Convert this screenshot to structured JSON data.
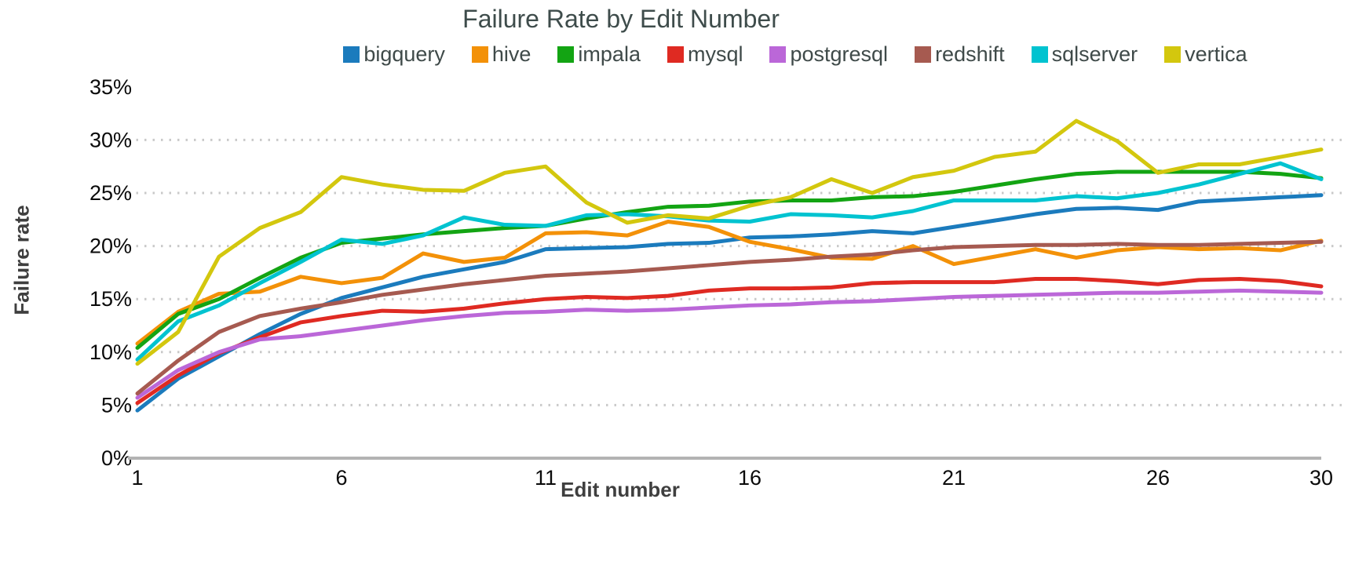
{
  "chart_data": {
    "type": "line",
    "title": "Failure Rate by Edit Number",
    "xlabel": "Edit number",
    "ylabel": "Failure rate",
    "xlim": [
      1,
      30
    ],
    "ylim": [
      0,
      35
    ],
    "grid": "horizontal dotted",
    "legend_position": "top-center",
    "axis_color": "#b3b3b3",
    "grid_color": "#c9c9c9",
    "xticks": [
      1,
      6,
      11,
      16,
      21,
      26,
      30
    ],
    "yticks": [
      "0%",
      "5%",
      "10%",
      "15%",
      "20%",
      "25%",
      "30%",
      "35%"
    ],
    "x": [
      1,
      2,
      3,
      4,
      5,
      6,
      7,
      8,
      9,
      10,
      11,
      12,
      13,
      14,
      15,
      16,
      17,
      18,
      19,
      20,
      21,
      22,
      23,
      24,
      25,
      26,
      27,
      28,
      29,
      30
    ],
    "series": [
      {
        "name": "bigquery",
        "color": "#1b7bbd",
        "values": [
          4.5,
          7.5,
          9.6,
          11.7,
          13.6,
          15.1,
          16.1,
          17.1,
          17.8,
          18.5,
          19.7,
          19.8,
          19.9,
          20.2,
          20.3,
          20.8,
          20.9,
          21.1,
          21.4,
          21.2,
          21.8,
          22.4,
          23.0,
          23.5,
          23.6,
          23.4,
          24.2,
          24.4,
          24.6,
          24.8
        ]
      },
      {
        "name": "hive",
        "color": "#f39108",
        "values": [
          10.8,
          13.8,
          15.5,
          15.7,
          17.1,
          16.5,
          17.0,
          19.3,
          18.5,
          18.9,
          21.2,
          21.3,
          21.0,
          22.3,
          21.8,
          20.4,
          19.7,
          18.9,
          18.8,
          20.0,
          18.3,
          19.0,
          19.7,
          18.9,
          19.6,
          19.9,
          19.7,
          19.8,
          19.6,
          20.5
        ]
      },
      {
        "name": "impala",
        "color": "#13a413",
        "values": [
          10.4,
          13.6,
          15.0,
          17.0,
          18.9,
          20.3,
          20.7,
          21.1,
          21.4,
          21.7,
          21.9,
          22.6,
          23.2,
          23.7,
          23.8,
          24.2,
          24.3,
          24.3,
          24.6,
          24.7,
          25.1,
          25.7,
          26.3,
          26.8,
          27.0,
          27.0,
          27.0,
          27.0,
          26.8,
          26.4
        ]
      },
      {
        "name": "mysql",
        "color": "#df2a22",
        "values": [
          5.2,
          7.8,
          9.9,
          11.4,
          12.8,
          13.4,
          13.9,
          13.8,
          14.1,
          14.6,
          15.0,
          15.2,
          15.1,
          15.3,
          15.8,
          16.0,
          16.0,
          16.1,
          16.5,
          16.6,
          16.6,
          16.6,
          16.9,
          16.9,
          16.7,
          16.4,
          16.8,
          16.9,
          16.7,
          16.2
        ]
      },
      {
        "name": "postgresql",
        "color": "#bb67d8",
        "values": [
          5.7,
          8.3,
          10.0,
          11.2,
          11.5,
          12.0,
          12.5,
          13.0,
          13.4,
          13.7,
          13.8,
          14.0,
          13.9,
          14.0,
          14.2,
          14.4,
          14.5,
          14.7,
          14.8,
          15.0,
          15.2,
          15.3,
          15.4,
          15.5,
          15.6,
          15.6,
          15.7,
          15.8,
          15.7,
          15.6
        ]
      },
      {
        "name": "redshift",
        "color": "#a65a50",
        "values": [
          6.1,
          9.2,
          11.9,
          13.4,
          14.1,
          14.7,
          15.4,
          15.9,
          16.4,
          16.8,
          17.2,
          17.4,
          17.6,
          17.9,
          18.2,
          18.5,
          18.7,
          19.0,
          19.2,
          19.6,
          19.9,
          20.0,
          20.1,
          20.1,
          20.2,
          20.1,
          20.1,
          20.2,
          20.3,
          20.4
        ]
      },
      {
        "name": "sqlserver",
        "color": "#00c3d0",
        "values": [
          9.3,
          12.9,
          14.4,
          16.5,
          18.5,
          20.6,
          20.2,
          21.0,
          22.7,
          22.0,
          21.9,
          22.9,
          23.0,
          22.8,
          22.4,
          22.3,
          23.0,
          22.9,
          22.7,
          23.3,
          24.3,
          24.3,
          24.3,
          24.7,
          24.5,
          25.0,
          25.8,
          26.8,
          27.8,
          26.3
        ]
      },
      {
        "name": "vertica",
        "color": "#d3c70e",
        "values": [
          8.9,
          11.9,
          19.0,
          21.7,
          23.2,
          26.5,
          25.8,
          25.3,
          25.2,
          26.9,
          27.5,
          24.1,
          22.2,
          22.9,
          22.6,
          23.8,
          24.6,
          26.3,
          25.0,
          26.5,
          27.1,
          28.4,
          28.9,
          31.8,
          29.9,
          26.9,
          27.7,
          27.7,
          28.4,
          29.1
        ]
      }
    ]
  }
}
